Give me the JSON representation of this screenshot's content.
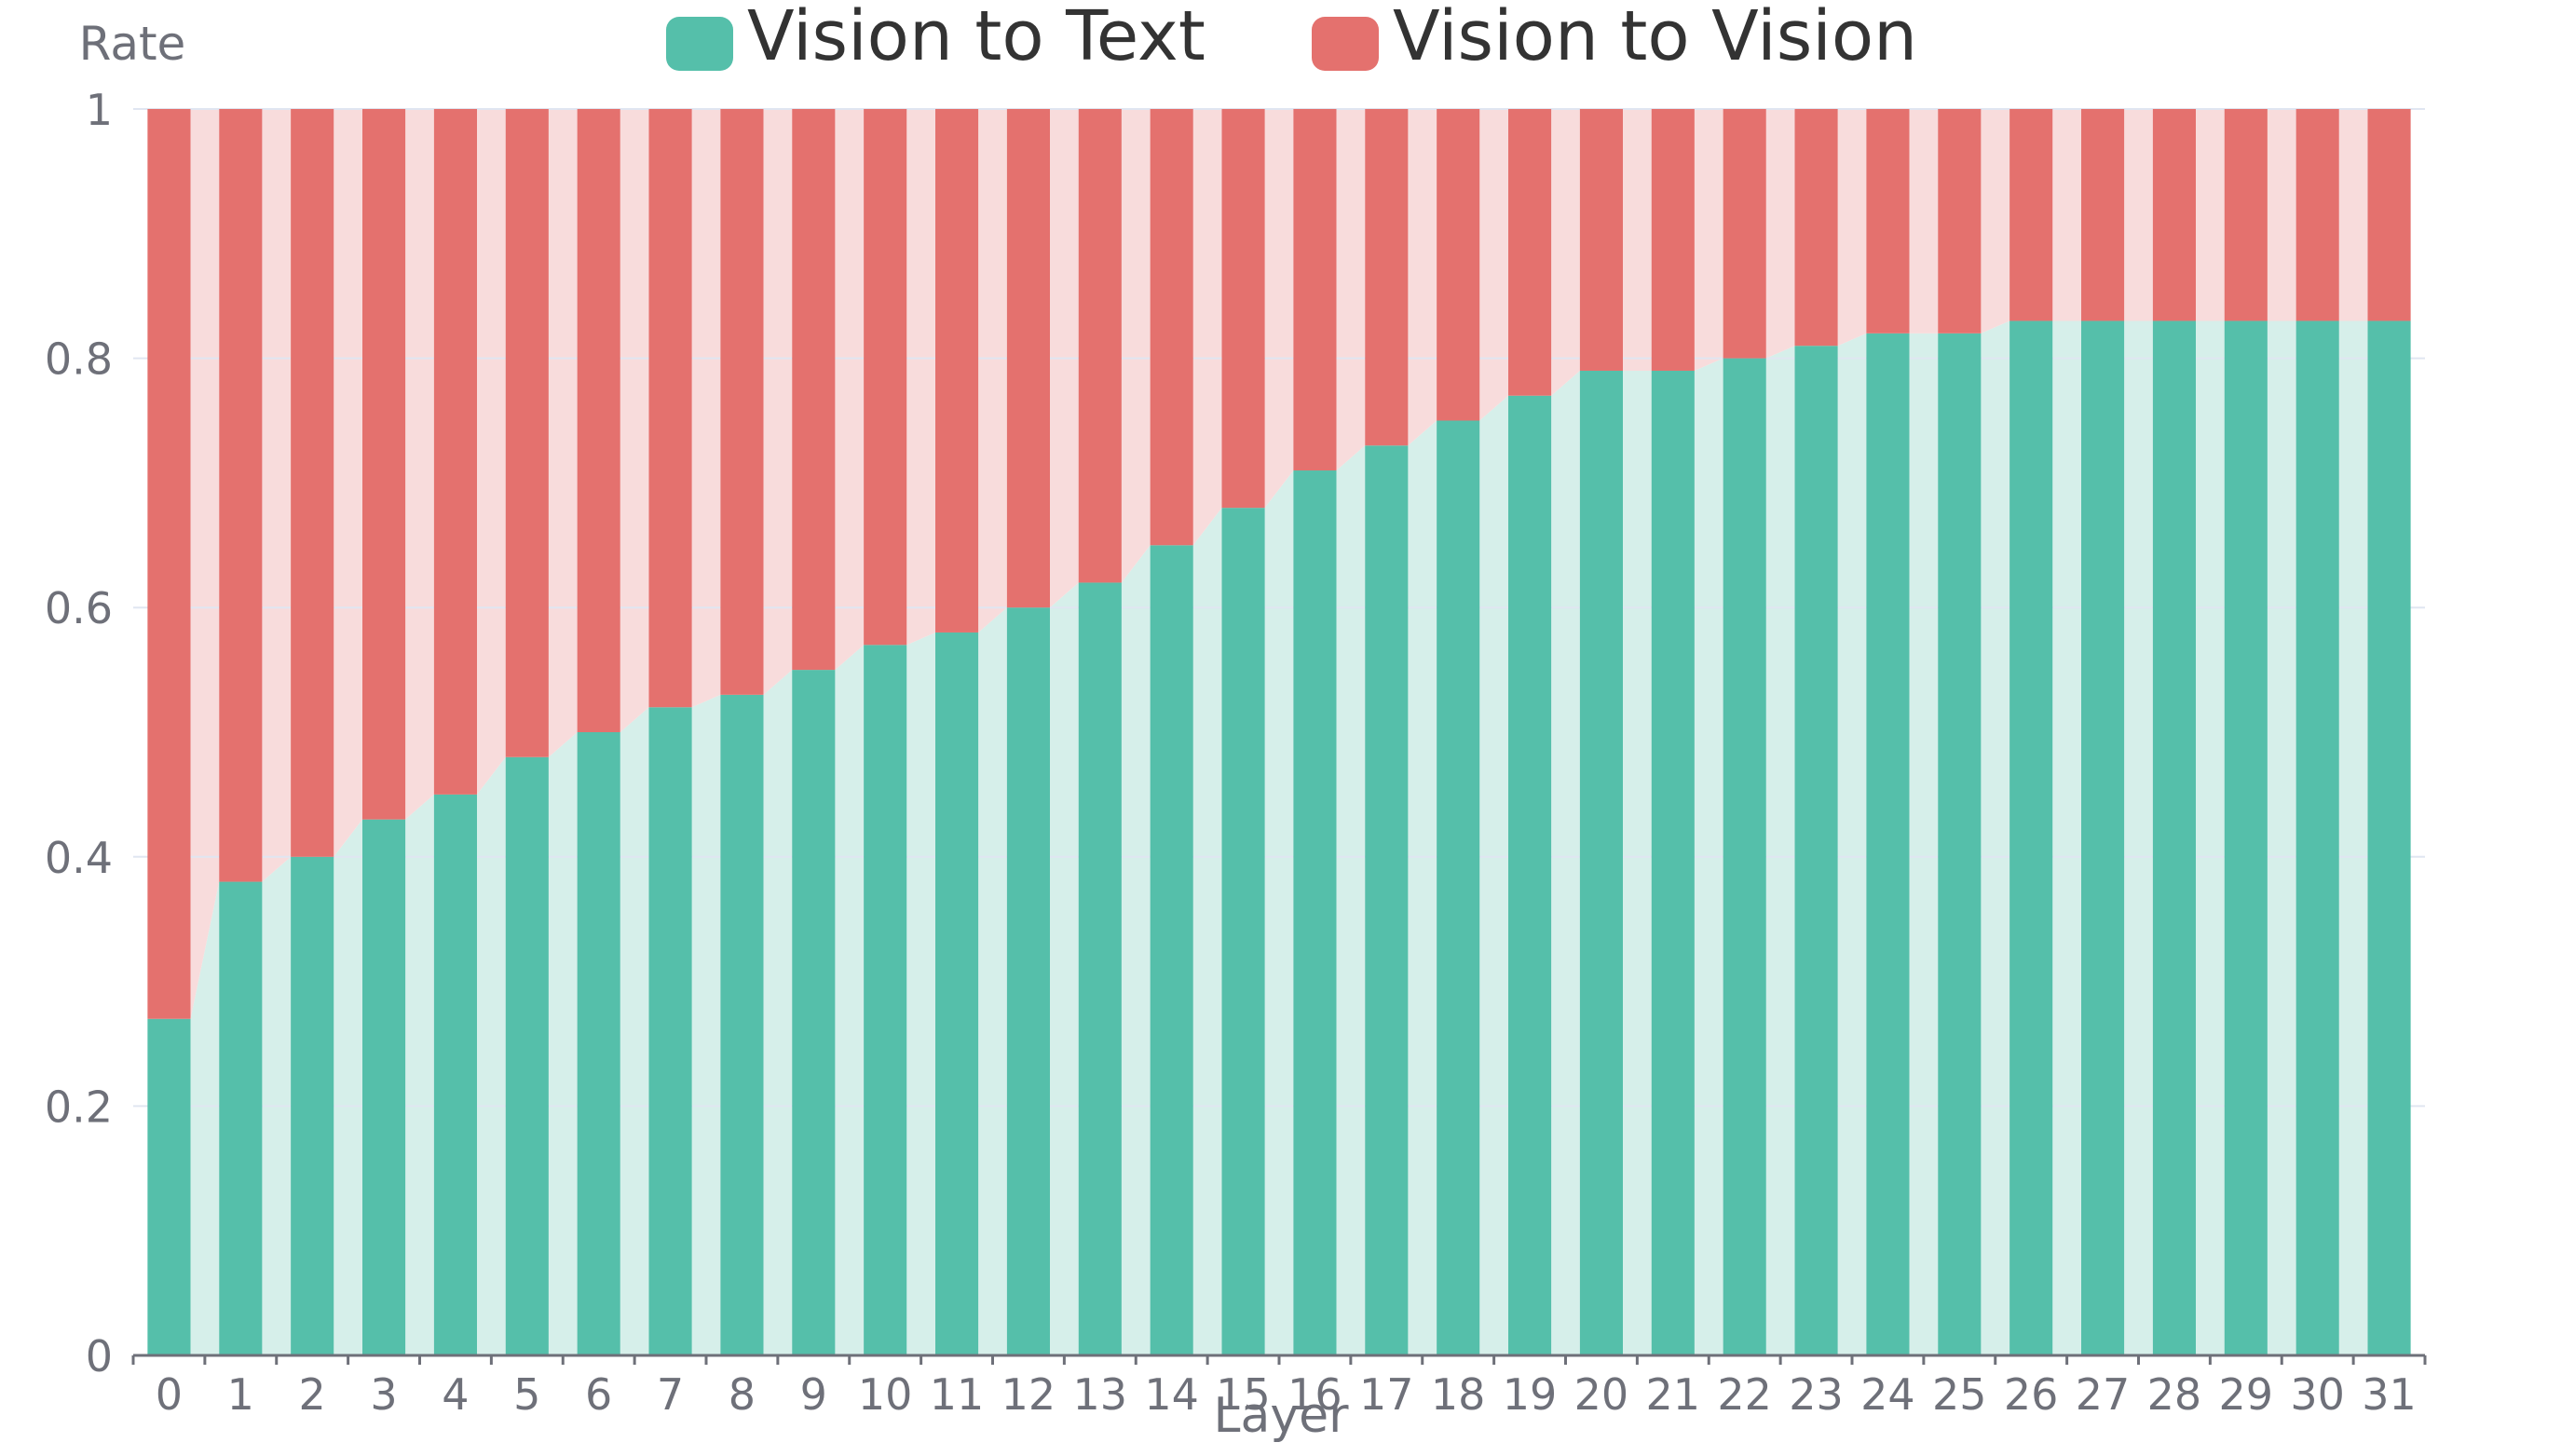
{
  "chart_data": {
    "type": "bar",
    "stacked": true,
    "title": "",
    "xlabel": "Layer",
    "ylabel": "Rate",
    "ylim": [
      0,
      1
    ],
    "yticks": [
      "0",
      "0.2",
      "0.4",
      "0.6",
      "0.8",
      "1"
    ],
    "ytick_values": [
      0,
      0.2,
      0.4,
      0.6,
      0.8,
      1
    ],
    "categories": [
      "0",
      "1",
      "2",
      "3",
      "4",
      "5",
      "6",
      "7",
      "8",
      "9",
      "10",
      "11",
      "12",
      "13",
      "14",
      "15",
      "16",
      "17",
      "18",
      "19",
      "20",
      "21",
      "22",
      "23",
      "24",
      "25",
      "26",
      "27",
      "28",
      "29",
      "30",
      "31"
    ],
    "legend_position": "top-center",
    "grid": true,
    "series": [
      {
        "name": "Vision to Text",
        "color": "#55bfaa",
        "band_color": "#d6efea",
        "values": [
          0.27,
          0.38,
          0.4,
          0.43,
          0.45,
          0.48,
          0.5,
          0.52,
          0.53,
          0.55,
          0.57,
          0.58,
          0.6,
          0.62,
          0.65,
          0.68,
          0.71,
          0.73,
          0.75,
          0.77,
          0.79,
          0.79,
          0.8,
          0.81,
          0.82,
          0.82,
          0.83,
          0.83,
          0.83,
          0.83,
          0.83,
          0.83
        ]
      },
      {
        "name": "Vision to Vision",
        "color": "#e4716e",
        "band_color": "#f8dcdc",
        "values": [
          0.73,
          0.62,
          0.6,
          0.57,
          0.55,
          0.52,
          0.5,
          0.48,
          0.47,
          0.45,
          0.43,
          0.42,
          0.4,
          0.38,
          0.35,
          0.32,
          0.29,
          0.27,
          0.25,
          0.23,
          0.21,
          0.21,
          0.2,
          0.19,
          0.18,
          0.18,
          0.17,
          0.17,
          0.17,
          0.17,
          0.17,
          0.17
        ]
      }
    ]
  }
}
